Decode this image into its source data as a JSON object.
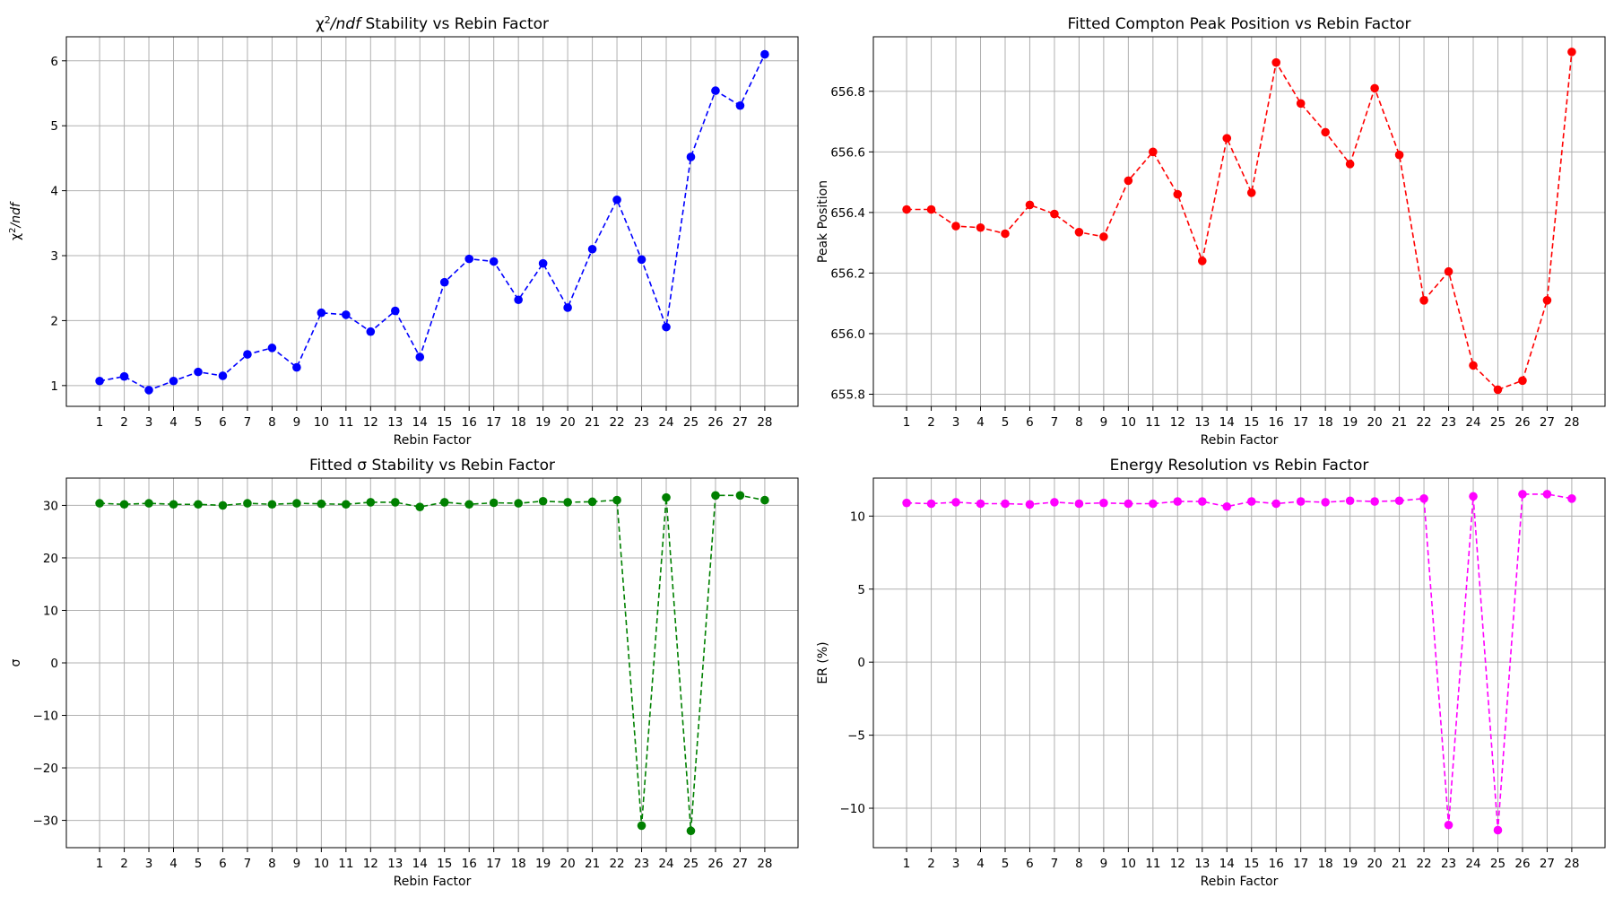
{
  "chart_data": [
    {
      "type": "line",
      "title_html": "χ<tspan baseline-shift=\"super\" font-size=\"11\">2</tspan><tspan font-style=\"italic\">/ndf</tspan> Stability vs Rebin Factor",
      "title": "χ2/ndf Stability vs Rebin Factor",
      "xlabel": "Rebin Factor",
      "ylabel_html": "χ<tspan baseline-shift=\"super\" font-size=\"10\">2</tspan><tspan font-style=\"italic\">/ndf</tspan>",
      "ylabel": "χ2/ndf",
      "color": "#0000ff",
      "grid": true,
      "xlim": [
        -0.35,
        29.35
      ],
      "ylim": [
        0.68,
        6.37
      ],
      "yticks": [
        1,
        2,
        3,
        4,
        5,
        6
      ],
      "ytick_labels": [
        "1",
        "2",
        "3",
        "4",
        "5",
        "6"
      ],
      "x": [
        1,
        2,
        3,
        4,
        5,
        6,
        7,
        8,
        9,
        10,
        11,
        12,
        13,
        14,
        15,
        16,
        17,
        18,
        19,
        20,
        21,
        22,
        23,
        24,
        25,
        26,
        27,
        28
      ],
      "series": [
        {
          "values": [
            1.07,
            1.14,
            0.93,
            1.07,
            1.21,
            1.15,
            1.48,
            1.58,
            1.28,
            2.12,
            2.09,
            1.83,
            2.15,
            1.44,
            2.59,
            2.95,
            2.91,
            2.32,
            2.88,
            2.2,
            3.1,
            3.86,
            2.94,
            1.9,
            4.52,
            5.54,
            5.31,
            6.1
          ]
        }
      ]
    },
    {
      "type": "line",
      "title": "Fitted Compton Peak Position vs Rebin Factor",
      "xlabel": "Rebin Factor",
      "ylabel": "Peak Position",
      "color": "#ff0000",
      "grid": true,
      "xlim": [
        -0.35,
        29.35
      ],
      "ylim": [
        655.76,
        656.98
      ],
      "yticks": [
        655.8,
        656.0,
        656.2,
        656.4,
        656.6,
        656.8
      ],
      "ytick_labels": [
        "655.8",
        "656.0",
        "656.2",
        "656.4",
        "656.6",
        "656.8"
      ],
      "x": [
        1,
        2,
        3,
        4,
        5,
        6,
        7,
        8,
        9,
        10,
        11,
        12,
        13,
        14,
        15,
        16,
        17,
        18,
        19,
        20,
        21,
        22,
        23,
        24,
        25,
        26,
        27,
        28
      ],
      "series": [
        {
          "values": [
            656.41,
            656.41,
            656.355,
            656.35,
            656.33,
            656.425,
            656.395,
            656.335,
            656.32,
            656.505,
            656.6,
            656.46,
            656.24,
            656.645,
            656.465,
            656.895,
            656.76,
            656.665,
            656.56,
            656.81,
            656.59,
            656.11,
            656.205,
            655.895,
            655.815,
            655.845,
            656.11,
            656.93
          ]
        }
      ]
    },
    {
      "type": "line",
      "title": "Fitted σ Stability vs Rebin Factor",
      "xlabel": "Rebin Factor",
      "ylabel": "σ",
      "color": "#008000",
      "grid": true,
      "xlim": [
        -0.35,
        29.35
      ],
      "ylim": [
        -35.2,
        35.2
      ],
      "yticks": [
        -30,
        -20,
        -10,
        0,
        10,
        20,
        30
      ],
      "ytick_labels": [
        "−30",
        "−20",
        "−10",
        "0",
        "10",
        "20",
        "30"
      ],
      "x": [
        1,
        2,
        3,
        4,
        5,
        6,
        7,
        8,
        9,
        10,
        11,
        12,
        13,
        14,
        15,
        16,
        17,
        18,
        19,
        20,
        21,
        22,
        23,
        24,
        25,
        26,
        27,
        28
      ],
      "series": [
        {
          "values": [
            30.4,
            30.2,
            30.4,
            30.2,
            30.2,
            30.0,
            30.4,
            30.2,
            30.4,
            30.3,
            30.2,
            30.6,
            30.6,
            29.7,
            30.6,
            30.2,
            30.5,
            30.4,
            30.8,
            30.6,
            30.7,
            31.0,
            -31.0,
            31.5,
            -32.0,
            31.9,
            31.9,
            31.0
          ]
        }
      ]
    },
    {
      "type": "line",
      "title": "Energy Resolution vs Rebin Factor",
      "xlabel": "Rebin Factor",
      "ylabel": "ER (%)",
      "color": "#ff00ff",
      "grid": true,
      "xlim": [
        -0.35,
        29.35
      ],
      "ylim": [
        -12.7,
        12.6
      ],
      "yticks": [
        -10,
        -5,
        0,
        5,
        10
      ],
      "ytick_labels": [
        "−10",
        "−5",
        "0",
        "5",
        "10"
      ],
      "x": [
        1,
        2,
        3,
        4,
        5,
        6,
        7,
        8,
        9,
        10,
        11,
        12,
        13,
        14,
        15,
        16,
        17,
        18,
        19,
        20,
        21,
        22,
        23,
        24,
        25,
        26,
        27,
        28
      ],
      "series": [
        {
          "values": [
            10.9,
            10.85,
            10.95,
            10.85,
            10.85,
            10.8,
            10.95,
            10.85,
            10.9,
            10.85,
            10.85,
            11.0,
            11.0,
            10.65,
            11.0,
            10.85,
            11.0,
            10.95,
            11.05,
            11.0,
            11.05,
            11.2,
            -11.15,
            11.35,
            -11.5,
            11.5,
            11.5,
            11.2
          ]
        }
      ]
    }
  ]
}
